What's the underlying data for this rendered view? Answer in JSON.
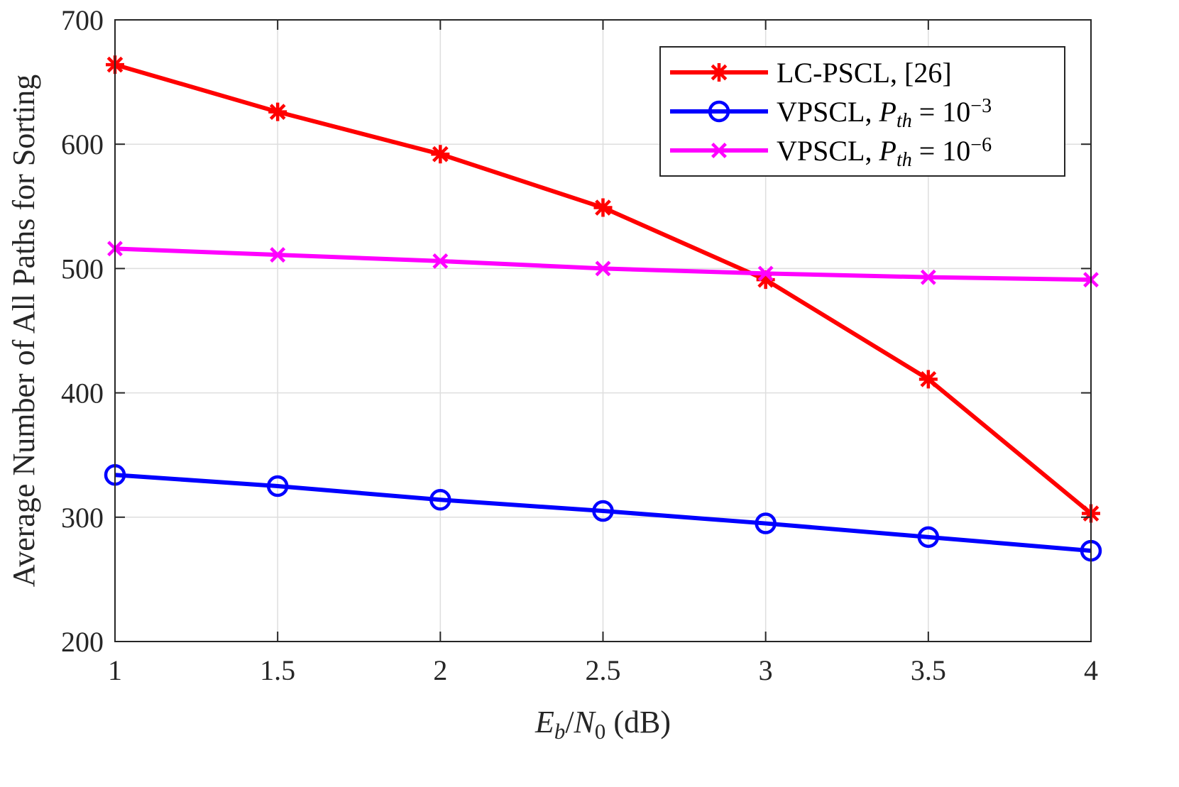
{
  "chart_data": {
    "type": "line",
    "x": [
      1,
      1.5,
      2,
      2.5,
      3,
      3.5,
      4
    ],
    "xlim": [
      1,
      4
    ],
    "ylim": [
      200,
      700
    ],
    "xticks": [
      1,
      1.5,
      2,
      2.5,
      3,
      3.5,
      4
    ],
    "xtick_labels": [
      "1",
      "1.5",
      "2",
      "2.5",
      "3",
      "3.5",
      "4"
    ],
    "yticks": [
      200,
      300,
      400,
      500,
      600,
      700
    ],
    "ytick_labels": [
      "200",
      "300",
      "400",
      "500",
      "600",
      "700"
    ],
    "grid": true,
    "legend_position": "top-right",
    "xlabel": {
      "parts": [
        {
          "text": "E",
          "italic": true
        },
        {
          "text": "b",
          "italic": true,
          "sub": true
        },
        {
          "text": "/"
        },
        {
          "text": "N",
          "italic": true
        },
        {
          "text": "0",
          "sub": true
        },
        {
          "text": " (dB)"
        }
      ]
    },
    "ylabel": "Average Number of All Paths for Sorting",
    "series": [
      {
        "name": "LC-PSCL, [26]",
        "color": "#ff0000",
        "marker": "asterisk",
        "values": [
          664,
          626,
          592,
          549,
          491,
          411,
          303
        ],
        "legend_parts": [
          {
            "text": "LC-PSCL, [26]"
          }
        ]
      },
      {
        "name": "VPSCL, P_th = 10^-3",
        "color": "#0000ff",
        "marker": "circle",
        "values": [
          334,
          325,
          314,
          305,
          295,
          284,
          273
        ],
        "legend_parts": [
          {
            "text": "VPSCL, "
          },
          {
            "text": "P",
            "italic": true
          },
          {
            "text": "th",
            "italic": true,
            "sub": true
          },
          {
            "text": " = 10"
          },
          {
            "text": "−3",
            "sup": true
          }
        ]
      },
      {
        "name": "VPSCL, P_th = 10^-6",
        "color": "#ff00ff",
        "marker": "x",
        "values": [
          516,
          511,
          506,
          500,
          496,
          493,
          491
        ],
        "legend_parts": [
          {
            "text": "VPSCL, "
          },
          {
            "text": "P",
            "italic": true
          },
          {
            "text": "th",
            "italic": true,
            "sub": true
          },
          {
            "text": " = 10"
          },
          {
            "text": "−6",
            "sup": true
          }
        ]
      }
    ]
  }
}
